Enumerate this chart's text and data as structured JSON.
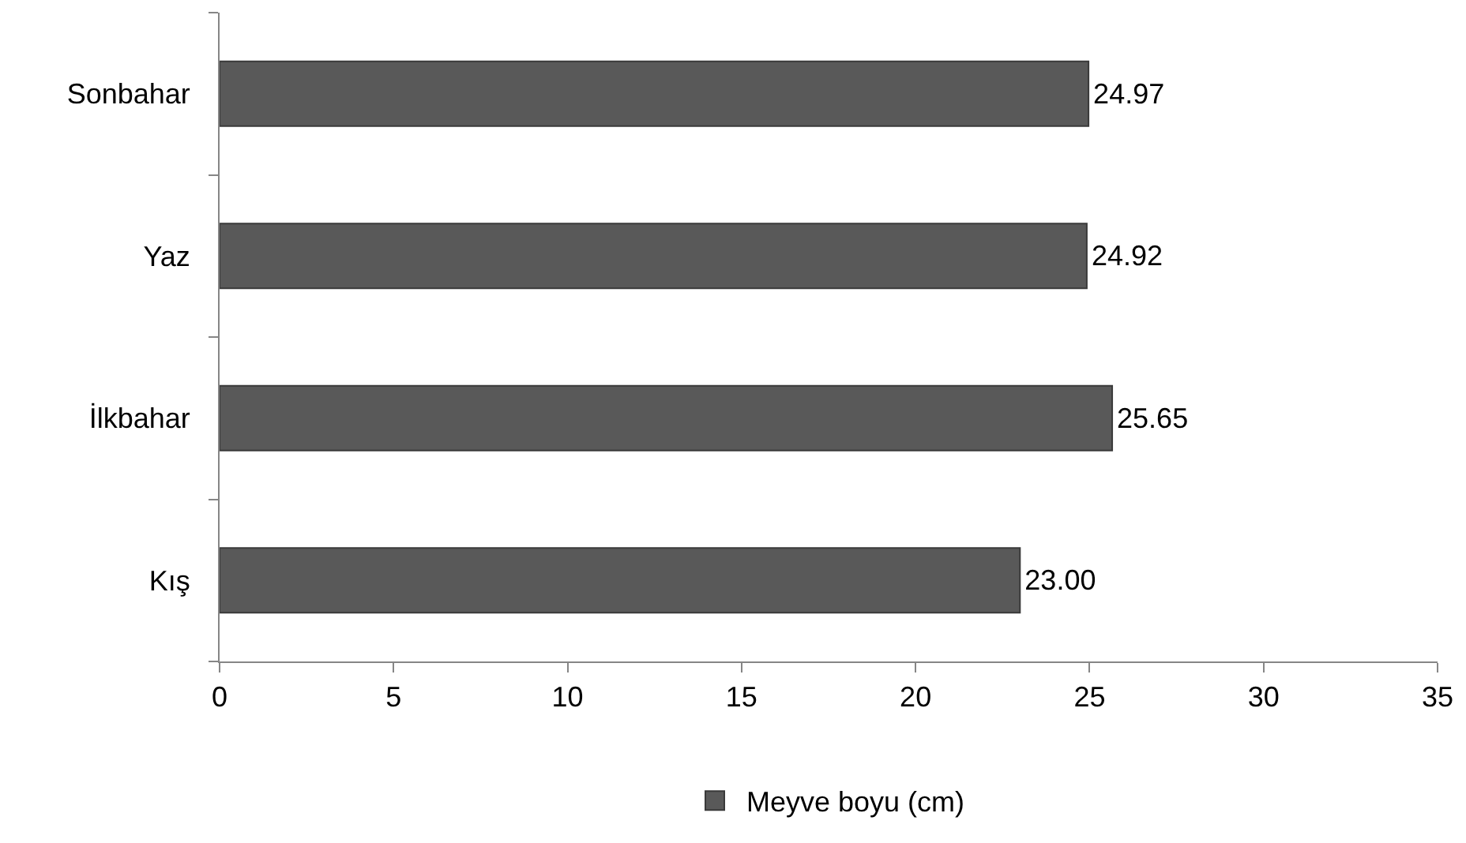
{
  "chart_data": {
    "type": "bar",
    "orientation": "horizontal",
    "categories": [
      "Sonbahar",
      "Yaz",
      "İlkbahar",
      "Kış"
    ],
    "series": [
      {
        "name": "Meyve boyu (cm)",
        "color": "#595959",
        "values": [
          24.97,
          24.92,
          25.65,
          23.0
        ],
        "value_labels": [
          "24.97",
          "24.92",
          "25.65",
          "23.00"
        ]
      }
    ],
    "xlim": [
      0,
      35
    ],
    "xticks": [
      0,
      5,
      10,
      15,
      20,
      25,
      30,
      35
    ],
    "legend": "bottom"
  }
}
